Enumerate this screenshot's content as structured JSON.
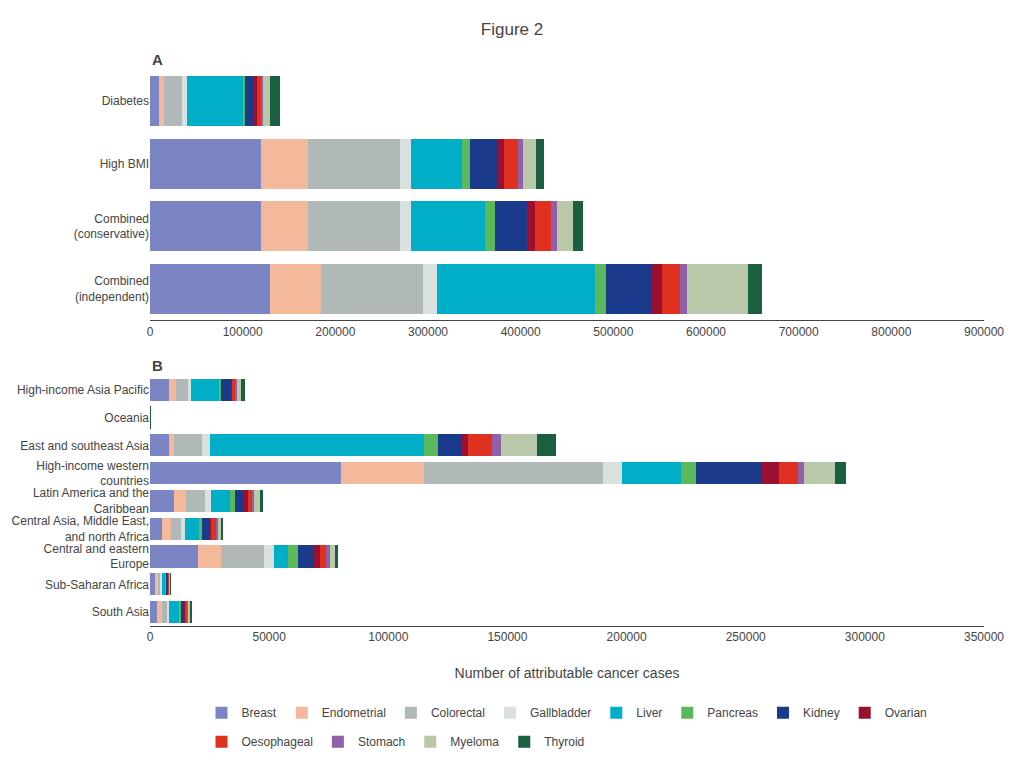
{
  "title": "Figure 2",
  "chart_data": [
    {
      "type": "bar",
      "title": "A",
      "orientation": "horizontal",
      "stacked": true,
      "grid": false,
      "categories": [
        "Diabetes",
        "High BMI",
        "Combined\n(conservative)",
        "Combined\n(independent)"
      ],
      "series": [
        {
          "name": "Breast",
          "color": "#7b85c4",
          "values": [
            10000,
            120000,
            120000,
            130000
          ]
        },
        {
          "name": "Endometrial",
          "color": "#f4b89a",
          "values": [
            5000,
            50000,
            50000,
            55000
          ]
        },
        {
          "name": "Colorectal",
          "color": "#b0b8b8",
          "values": [
            20000,
            100000,
            100000,
            110000
          ]
        },
        {
          "name": "Gallbladder",
          "color": "#d8e0e0",
          "values": [
            5000,
            12000,
            12000,
            15000
          ]
        },
        {
          "name": "Liver",
          "color": "#00aec8",
          "values": [
            60000,
            55000,
            80000,
            170000
          ]
        },
        {
          "name": "Pancreas",
          "color": "#5cb85c",
          "values": [
            3000,
            8000,
            10000,
            12000
          ]
        },
        {
          "name": "Kidney",
          "color": "#1a3a8c",
          "values": [
            10000,
            30000,
            35000,
            50000
          ]
        },
        {
          "name": "Ovarian",
          "color": "#9b1030",
          "values": [
            2000,
            7000,
            8000,
            10000
          ]
        },
        {
          "name": "Oesophageal",
          "color": "#e03020",
          "values": [
            5000,
            15000,
            18000,
            20000
          ]
        },
        {
          "name": "Stomach",
          "color": "#9060a8",
          "values": [
            2000,
            5000,
            6000,
            8000
          ]
        },
        {
          "name": "Myeloma",
          "color": "#b8c8a8",
          "values": [
            8000,
            15000,
            18000,
            65000
          ]
        },
        {
          "name": "Thyroid",
          "color": "#1a6040",
          "values": [
            10000,
            8000,
            10000,
            15000
          ]
        }
      ],
      "xlim": [
        0,
        900000
      ],
      "xticks": [
        0,
        100000,
        200000,
        300000,
        400000,
        500000,
        600000,
        700000,
        800000,
        900000
      ]
    },
    {
      "type": "bar",
      "title": "B",
      "orientation": "horizontal",
      "stacked": true,
      "grid": false,
      "x_label": "Number of attributable cancer cases",
      "categories": [
        "High-income Asia Pacific",
        "Oceania",
        "East and southeast Asia",
        "High-income western\ncountries",
        "Latin America and the\nCaribbean",
        "Central Asia, Middle East,\nand north Africa",
        "Central and eastern\nEurope",
        "Sub-Saharan Africa",
        "South Asia"
      ],
      "series": [
        {
          "name": "Breast",
          "color": "#7b85c4",
          "values": [
            8000,
            100,
            8000,
            80000,
            10000,
            5000,
            20000,
            2000,
            3000
          ]
        },
        {
          "name": "Endometrial",
          "color": "#f4b89a",
          "values": [
            3000,
            50,
            2000,
            35000,
            5000,
            4000,
            10000,
            1500,
            2000
          ]
        },
        {
          "name": "Colorectal",
          "color": "#b0b8b8",
          "values": [
            5000,
            50,
            12000,
            75000,
            8000,
            4000,
            18000,
            1000,
            2000
          ]
        },
        {
          "name": "Gallbladder",
          "color": "#d8e0e0",
          "values": [
            1000,
            10,
            3000,
            8000,
            2500,
            1500,
            4000,
            500,
            1000
          ]
        },
        {
          "name": "Liver",
          "color": "#00aec8",
          "values": [
            12000,
            100,
            90000,
            25000,
            8000,
            6000,
            6000,
            1500,
            4000
          ]
        },
        {
          "name": "Pancreas",
          "color": "#5cb85c",
          "values": [
            1000,
            10,
            6000,
            6000,
            2000,
            1500,
            4000,
            500,
            1000
          ]
        },
        {
          "name": "Kidney",
          "color": "#1a3a8c",
          "values": [
            4000,
            30,
            10000,
            28000,
            4000,
            3000,
            7000,
            500,
            1500
          ]
        },
        {
          "name": "Ovarian",
          "color": "#9b1030",
          "values": [
            500,
            5,
            2500,
            7000,
            1500,
            800,
            2500,
            200,
            600
          ]
        },
        {
          "name": "Oesophageal",
          "color": "#e03020",
          "values": [
            1500,
            10,
            10000,
            8000,
            2000,
            2000,
            2500,
            300,
            800
          ]
        },
        {
          "name": "Stomach",
          "color": "#9060a8",
          "values": [
            300,
            5,
            4000,
            2500,
            800,
            600,
            1500,
            100,
            300
          ]
        },
        {
          "name": "Myeloma",
          "color": "#b8c8a8",
          "values": [
            2000,
            20,
            15000,
            13000,
            2500,
            1500,
            2500,
            300,
            800
          ]
        },
        {
          "name": "Thyroid",
          "color": "#1a6040",
          "values": [
            1500,
            10,
            8000,
            4500,
            1000,
            800,
            800,
            150,
            300
          ]
        }
      ],
      "xlim": [
        0,
        350000
      ],
      "xticks": [
        0,
        50000,
        100000,
        150000,
        200000,
        250000,
        300000,
        350000
      ]
    }
  ]
}
